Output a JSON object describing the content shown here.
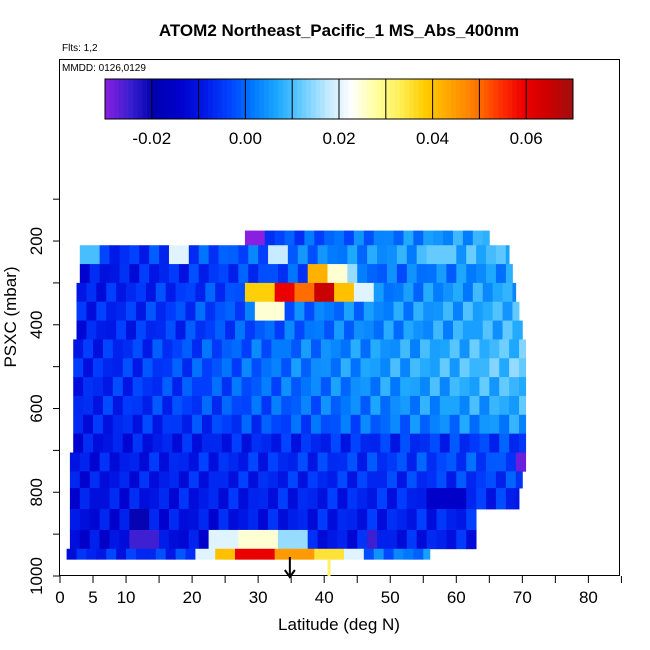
{
  "chart_data": {
    "type": "heatmap",
    "title": "ATOM2 Northeast_Pacific_1 MS_Abs_400nm",
    "flights_label": "Flts: 1,2",
    "dates_label": "MMDD: 0126,0129",
    "xlabel": "Latitude (deg N)",
    "ylabel": "PSXC (mbar)",
    "xlim": [
      0,
      85
    ],
    "ylim": [
      1000,
      65
    ],
    "x_ticks": [
      0,
      5,
      10,
      20,
      30,
      40,
      50,
      60,
      70,
      80
    ],
    "y_ticks": [
      200,
      400,
      600,
      800,
      1000
    ],
    "colorbar": {
      "range": [
        -0.03,
        0.07
      ],
      "tick_values": [
        -0.02,
        0.0,
        0.02,
        0.04,
        0.06
      ],
      "tick_labels": [
        "-0.02",
        "0.00",
        "0.02",
        "0.04",
        "0.06"
      ],
      "colors": [
        "#8b1fe0",
        "#3a1fd0",
        "#0000b0",
        "#0000cc",
        "#0018e6",
        "#0040ff",
        "#0078ff",
        "#1ea8ff",
        "#66ccff",
        "#bfe8ff",
        "#ffffff",
        "#ffffa0",
        "#ffee55",
        "#ffcc00",
        "#ffa500",
        "#ff7a00",
        "#ff3300",
        "#ee0000",
        "#cc0000",
        "#a01010"
      ]
    },
    "rows": [
      {
        "p_top": 175,
        "p_bot": 210,
        "lat_start": 28,
        "lat_end": 65,
        "base": -0.005,
        "grad": 0.012,
        "spots": [
          [
            28,
            31,
            -0.03
          ]
        ]
      },
      {
        "p_top": 210,
        "p_bot": 255,
        "lat_start": 3,
        "lat_end": 68,
        "base": -0.008,
        "grad": 0.018,
        "spots": [
          [
            3,
            6,
            0.01
          ],
          [
            17,
            19,
            0.02
          ],
          [
            31,
            34,
            0.018
          ],
          [
            55,
            60,
            0.012
          ]
        ]
      },
      {
        "p_top": 255,
        "p_bot": 300,
        "lat_start": 3,
        "lat_end": 68.5,
        "base": -0.01,
        "grad": 0.015,
        "spots": [
          [
            37,
            40,
            0.042
          ],
          [
            40,
            43,
            0.025
          ],
          [
            44,
            45,
            0.015
          ]
        ]
      },
      {
        "p_top": 300,
        "p_bot": 345,
        "lat_start": 2.5,
        "lat_end": 69,
        "base": -0.009,
        "grad": 0.016,
        "spots": [
          [
            28,
            32,
            0.038
          ],
          [
            32,
            36,
            0.06
          ],
          [
            36,
            38,
            0.05
          ],
          [
            38,
            42,
            0.065
          ],
          [
            42,
            44,
            0.04
          ],
          [
            44,
            47,
            0.02
          ]
        ]
      },
      {
        "p_top": 345,
        "p_bot": 390,
        "lat_start": 2.5,
        "lat_end": 69.5,
        "base": -0.008,
        "grad": 0.017,
        "spots": [
          [
            30,
            34,
            0.025
          ]
        ]
      },
      {
        "p_top": 390,
        "p_bot": 435,
        "lat_start": 2.5,
        "lat_end": 70,
        "base": -0.009,
        "grad": 0.018,
        "spots": []
      },
      {
        "p_top": 435,
        "p_bot": 480,
        "lat_start": 2,
        "lat_end": 70.5,
        "base": -0.008,
        "grad": 0.019,
        "spots": []
      },
      {
        "p_top": 480,
        "p_bot": 525,
        "lat_start": 2,
        "lat_end": 70.5,
        "base": -0.008,
        "grad": 0.02,
        "spots": []
      },
      {
        "p_top": 525,
        "p_bot": 570,
        "lat_start": 2,
        "lat_end": 70.5,
        "base": -0.008,
        "grad": 0.018,
        "spots": []
      },
      {
        "p_top": 570,
        "p_bot": 615,
        "lat_start": 2,
        "lat_end": 70.5,
        "base": -0.008,
        "grad": 0.016,
        "spots": []
      },
      {
        "p_top": 615,
        "p_bot": 660,
        "lat_start": 2,
        "lat_end": 70.5,
        "base": -0.009,
        "grad": 0.014,
        "spots": []
      },
      {
        "p_top": 660,
        "p_bot": 705,
        "lat_start": 2,
        "lat_end": 70.5,
        "base": -0.01,
        "grad": 0.006,
        "spots": []
      },
      {
        "p_top": 705,
        "p_bot": 750,
        "lat_start": 1.5,
        "lat_end": 70.5,
        "base": -0.01,
        "grad": 0.008,
        "spots": [
          [
            69,
            71.5,
            -0.028
          ]
        ]
      },
      {
        "p_top": 750,
        "p_bot": 790,
        "lat_start": 1.5,
        "lat_end": 70,
        "base": -0.01,
        "grad": 0.006,
        "spots": []
      },
      {
        "p_top": 790,
        "p_bot": 840,
        "lat_start": 1.5,
        "lat_end": 69.5,
        "base": -0.01,
        "grad": 0.004,
        "spots": [
          [
            55,
            62,
            -0.015
          ]
        ]
      },
      {
        "p_top": 840,
        "p_bot": 890,
        "lat_start": 1.5,
        "lat_end": 63,
        "base": -0.011,
        "grad": 0.004,
        "spots": [
          [
            10,
            14,
            -0.02
          ]
        ]
      },
      {
        "p_top": 890,
        "p_bot": 935,
        "lat_start": 1.5,
        "lat_end": 63,
        "base": -0.012,
        "grad": 0.004,
        "spots": [
          [
            10,
            15,
            -0.025
          ],
          [
            23,
            27,
            0.02
          ],
          [
            27,
            33,
            0.025
          ],
          [
            33,
            37,
            0.015
          ],
          [
            46,
            48,
            -0.025
          ]
        ]
      },
      {
        "p_top": 935,
        "p_bot": 960,
        "lat_start": 1,
        "lat_end": 56,
        "base": -0.008,
        "grad": 0.01,
        "spots": [
          [
            20,
            24,
            0.02
          ],
          [
            24,
            26,
            0.04
          ],
          [
            26,
            33,
            0.06
          ],
          [
            33,
            39,
            0.045
          ],
          [
            39,
            43,
            0.035
          ],
          [
            43,
            46,
            0.02
          ]
        ]
      }
    ],
    "extra_marks": [
      {
        "lat": 40.8,
        "p_top": 960,
        "p_bot": 1000,
        "value": 0.032
      }
    ],
    "arrow_lat": 34.8
  }
}
